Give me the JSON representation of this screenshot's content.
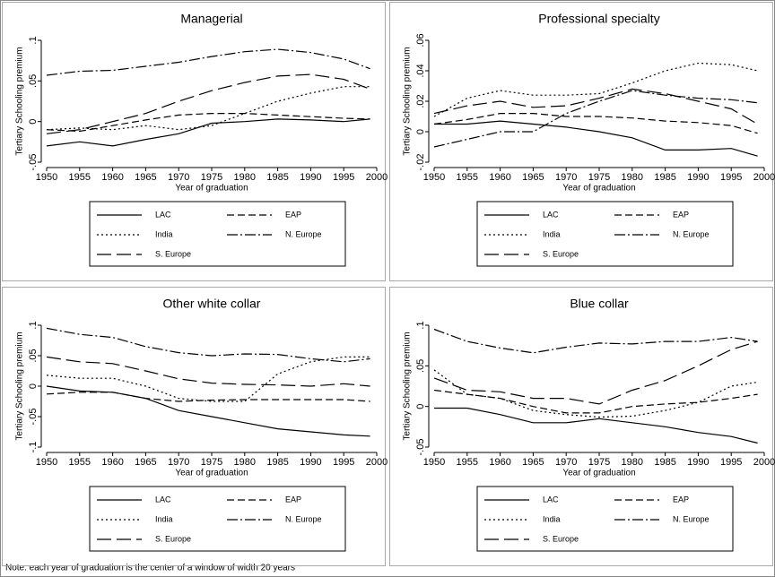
{
  "note": "Note: each year of graduation is the center of a window of width 20 years",
  "chart_data": [
    {
      "type": "line",
      "title": "Managerial",
      "xlabel": "Year of graduation",
      "ylabel": "Tertiary Schooling premium",
      "legend": "bottom",
      "x": [
        1950,
        1955,
        1960,
        1965,
        1970,
        1975,
        1980,
        1985,
        1990,
        1995,
        1999
      ],
      "xlim": [
        1950,
        2000
      ],
      "xticks": [
        1950,
        1955,
        1960,
        1965,
        1970,
        1975,
        1980,
        1985,
        1990,
        1995,
        2000
      ],
      "ylim": [
        -0.05,
        0.1
      ],
      "yticks": [
        {
          "value": -0.05,
          "label": "-.05"
        },
        0,
        {
          "value": 0.05,
          "label": ".05"
        },
        {
          "value": 0.1,
          "label": ".1"
        }
      ],
      "series": [
        {
          "name": "LAC",
          "color": "#000000",
          "dash": "solid",
          "values": [
            -0.03,
            -0.025,
            -0.03,
            -0.022,
            -0.015,
            -0.002,
            0,
            0.003,
            0.002,
            0,
            0.003
          ]
        },
        {
          "name": "EAP",
          "color": "#000000",
          "dash": "dashed",
          "values": [
            -0.01,
            -0.012,
            -0.005,
            0.002,
            0.008,
            0.01,
            0.01,
            0.008,
            0.006,
            0.004,
            0.003
          ]
        },
        {
          "name": "India",
          "color": "#000000",
          "dash": "dotted",
          "values": [
            -0.01,
            -0.008,
            -0.01,
            -0.005,
            -0.01,
            -0.005,
            0.01,
            0.025,
            0.035,
            0.043,
            0.043
          ]
        },
        {
          "name": "N. Europe",
          "color": "#000000",
          "dash": "dashdot",
          "values": [
            0.057,
            0.062,
            0.063,
            0.068,
            0.073,
            0.08,
            0.086,
            0.089,
            0.085,
            0.077,
            0.065
          ]
        },
        {
          "name": "S. Europe",
          "color": "#000000",
          "dash": "longdash",
          "values": [
            -0.015,
            -0.01,
            0,
            0.01,
            0.025,
            0.038,
            0.048,
            0.056,
            0.058,
            0.052,
            0.04
          ]
        }
      ]
    },
    {
      "type": "line",
      "title": "Professional specialty",
      "xlabel": "Year of graduation",
      "ylabel": "Tertiary Schooling premium",
      "legend": "bottom",
      "x": [
        1950,
        1955,
        1960,
        1965,
        1970,
        1975,
        1980,
        1985,
        1990,
        1995,
        1999
      ],
      "xlim": [
        1950,
        2000
      ],
      "xticks": [
        1950,
        1955,
        1960,
        1965,
        1970,
        1975,
        1980,
        1985,
        1990,
        1995,
        2000
      ],
      "ylim": [
        -0.02,
        0.06
      ],
      "yticks": [
        {
          "value": -0.02,
          "label": "-.02"
        },
        0,
        {
          "value": 0.02,
          "label": ".02"
        },
        {
          "value": 0.04,
          "label": ".04"
        },
        {
          "value": 0.06,
          "label": ".06"
        }
      ],
      "series": [
        {
          "name": "LAC",
          "color": "#000000",
          "dash": "solid",
          "values": [
            0.005,
            0.005,
            0.007,
            0.005,
            0.003,
            0,
            -0.004,
            -0.012,
            -0.012,
            -0.011,
            -0.016
          ]
        },
        {
          "name": "EAP",
          "color": "#000000",
          "dash": "dashed",
          "values": [
            0.005,
            0.008,
            0.012,
            0.012,
            0.01,
            0.01,
            0.009,
            0.007,
            0.006,
            0.004,
            -0.001
          ]
        },
        {
          "name": "India",
          "color": "#000000",
          "dash": "dotted",
          "values": [
            0.01,
            0.022,
            0.027,
            0.024,
            0.024,
            0.025,
            0.032,
            0.04,
            0.045,
            0.044,
            0.04
          ]
        },
        {
          "name": "N. Europe",
          "color": "#000000",
          "dash": "dashdot",
          "values": [
            -0.01,
            -0.005,
            0,
            0,
            0.012,
            0.02,
            0.027,
            0.024,
            0.022,
            0.021,
            0.019
          ]
        },
        {
          "name": "S. Europe",
          "color": "#000000",
          "dash": "longdash",
          "values": [
            0.012,
            0.017,
            0.02,
            0.016,
            0.017,
            0.022,
            0.028,
            0.025,
            0.02,
            0.015,
            0.005
          ]
        }
      ]
    },
    {
      "type": "line",
      "title": "Other white collar",
      "xlabel": "Year of graduation",
      "ylabel": "Tertiary Schooling premium",
      "legend": "bottom",
      "x": [
        1950,
        1955,
        1960,
        1965,
        1970,
        1975,
        1980,
        1985,
        1990,
        1995,
        1999
      ],
      "xlim": [
        1950,
        2000
      ],
      "xticks": [
        1950,
        1955,
        1960,
        1965,
        1970,
        1975,
        1980,
        1985,
        1990,
        1995,
        2000
      ],
      "ylim": [
        -0.1,
        0.1
      ],
      "yticks": [
        {
          "value": -0.1,
          "label": "-.1"
        },
        {
          "value": -0.05,
          "label": "-.05"
        },
        0,
        {
          "value": 0.05,
          "label": ".05"
        },
        {
          "value": 0.1,
          "label": ".1"
        }
      ],
      "series": [
        {
          "name": "LAC",
          "color": "#000000",
          "dash": "solid",
          "values": [
            0,
            -0.008,
            -0.01,
            -0.02,
            -0.04,
            -0.05,
            -0.06,
            -0.07,
            -0.075,
            -0.08,
            -0.082
          ]
        },
        {
          "name": "EAP",
          "color": "#000000",
          "dash": "dashed",
          "values": [
            -0.013,
            -0.01,
            -0.01,
            -0.02,
            -0.025,
            -0.023,
            -0.022,
            -0.022,
            -0.022,
            -0.022,
            -0.025
          ]
        },
        {
          "name": "India",
          "color": "#000000",
          "dash": "dotted",
          "values": [
            0.018,
            0.013,
            0.013,
            0,
            -0.02,
            -0.025,
            -0.025,
            0.02,
            0.04,
            0.048,
            0.048
          ]
        },
        {
          "name": "N. Europe",
          "color": "#000000",
          "dash": "dashdot",
          "values": [
            0.095,
            0.085,
            0.08,
            0.065,
            0.055,
            0.05,
            0.053,
            0.052,
            0.045,
            0.04,
            0.045
          ]
        },
        {
          "name": "S. Europe",
          "color": "#000000",
          "dash": "longdash",
          "values": [
            0.048,
            0.04,
            0.037,
            0.025,
            0.012,
            0.005,
            0.003,
            0.002,
            0,
            0.004,
            0
          ]
        }
      ]
    },
    {
      "type": "line",
      "title": "Blue collar",
      "xlabel": "Year of graduation",
      "ylabel": "Tertiary Schooling premium",
      "legend": "bottom",
      "x": [
        1950,
        1955,
        1960,
        1965,
        1970,
        1975,
        1980,
        1985,
        1990,
        1995,
        1999
      ],
      "xlim": [
        1950,
        2000
      ],
      "xticks": [
        1950,
        1955,
        1960,
        1965,
        1970,
        1975,
        1980,
        1985,
        1990,
        1995,
        2000
      ],
      "ylim": [
        -0.05,
        0.1
      ],
      "yticks": [
        {
          "value": -0.05,
          "label": "-.05"
        },
        0,
        {
          "value": 0.05,
          "label": ".05"
        },
        {
          "value": 0.1,
          "label": ".1"
        }
      ],
      "series": [
        {
          "name": "LAC",
          "color": "#000000",
          "dash": "solid",
          "values": [
            -0.002,
            -0.002,
            -0.01,
            -0.02,
            -0.02,
            -0.015,
            -0.02,
            -0.025,
            -0.032,
            -0.037,
            -0.045
          ]
        },
        {
          "name": "EAP",
          "color": "#000000",
          "dash": "dashed",
          "values": [
            0.02,
            0.015,
            0.01,
            0,
            -0.008,
            -0.008,
            0,
            0.003,
            0.005,
            0.01,
            0.015
          ]
        },
        {
          "name": "India",
          "color": "#000000",
          "dash": "dotted",
          "values": [
            0.045,
            0.015,
            0.01,
            -0.005,
            -0.01,
            -0.013,
            -0.012,
            -0.005,
            0.005,
            0.025,
            0.03
          ]
        },
        {
          "name": "N. Europe",
          "color": "#000000",
          "dash": "dashdot",
          "values": [
            0.095,
            0.08,
            0.072,
            0.066,
            0.073,
            0.078,
            0.077,
            0.08,
            0.08,
            0.085,
            0.08
          ]
        },
        {
          "name": "S. Europe",
          "color": "#000000",
          "dash": "longdash",
          "values": [
            0.035,
            0.02,
            0.018,
            0.01,
            0.01,
            0.003,
            0.02,
            0.032,
            0.05,
            0.07,
            0.08
          ]
        }
      ]
    }
  ]
}
